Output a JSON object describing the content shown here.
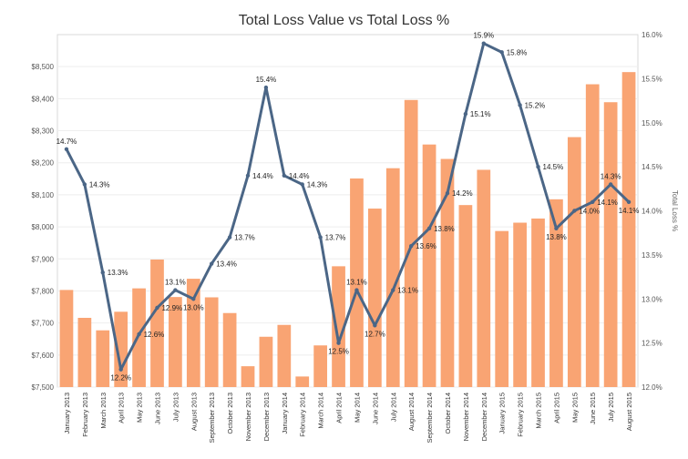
{
  "chart_data": {
    "type": "bar+line",
    "title": "Total Loss Value vs Total Loss %",
    "xlabel": "",
    "ylabel_left": "",
    "ylabel_right": "Total Loss %",
    "ylim_left": [
      7500,
      8600
    ],
    "ylim_right": [
      12.0,
      16.0
    ],
    "left_ticks": [
      "$7,500",
      "$7,600",
      "$7,700",
      "$7,800",
      "$7,900",
      "$8,000",
      "$8,100",
      "$8,200",
      "$8,300",
      "$8,400",
      "$8,500"
    ],
    "right_ticks": [
      "12.0%",
      "12.5%",
      "13.0%",
      "13.5%",
      "14.0%",
      "14.5%",
      "15.0%",
      "15.5%",
      "16.0%"
    ],
    "categories": [
      "January 2013",
      "February 2013",
      "March 2013",
      "April 2013",
      "May 2013",
      "June 2013",
      "July 2013",
      "August 2013",
      "September 2013",
      "October 2013",
      "November 2013",
      "December 2013",
      "January 2014",
      "February 2014",
      "March 2014",
      "April 2014",
      "May 2014",
      "June 2014",
      "July 2014",
      "August 2014",
      "September 2014",
      "October 2014",
      "November 2014",
      "December 2014",
      "January 2015",
      "February 2015",
      "March 2015",
      "April 2015",
      "May 2015",
      "June 2015",
      "July 2015",
      "August 2015"
    ],
    "series": [
      {
        "name": "Total Loss Value",
        "type": "bar",
        "axis": "left",
        "color": "#F9A473",
        "values": [
          7803,
          7716,
          7677,
          7735,
          7808,
          7898,
          7781,
          7838,
          7780,
          7731,
          7565,
          7657,
          7694,
          7533,
          7630,
          7877,
          8151,
          8057,
          8183,
          8396,
          8257,
          8212,
          8068,
          8178,
          7987,
          8013,
          8026,
          8086,
          8280,
          8445,
          8389,
          8483
        ]
      },
      {
        "name": "Total Loss %",
        "type": "line",
        "axis": "right",
        "color": "#4B6686",
        "values": [
          14.7,
          14.3,
          13.3,
          12.2,
          12.6,
          12.9,
          13.1,
          13.0,
          13.4,
          13.7,
          14.4,
          15.4,
          14.4,
          14.3,
          13.7,
          12.5,
          13.1,
          12.7,
          13.1,
          13.6,
          13.8,
          14.2,
          15.1,
          15.9,
          15.8,
          15.2,
          14.5,
          13.8,
          14.0,
          14.1,
          14.3,
          14.1
        ],
        "labels": [
          "14.7%",
          "14.3%",
          "13.3%",
          "12.2%",
          "12.6%",
          "12.9%",
          "13.1%",
          "13.0%",
          "13.4%",
          "13.7%",
          "14.4%",
          "15.4%",
          "14.4%",
          "14.3%",
          "13.7%",
          "12.5%",
          "13.1%",
          "12.7%",
          "13.1%",
          "13.6%",
          "13.8%",
          "14.2%",
          "15.1%",
          "15.9%",
          "15.8%",
          "15.2%",
          "14.5%",
          "13.8%",
          "14.0%",
          "14.1%",
          "14.3%",
          "14.1%"
        ]
      }
    ]
  }
}
